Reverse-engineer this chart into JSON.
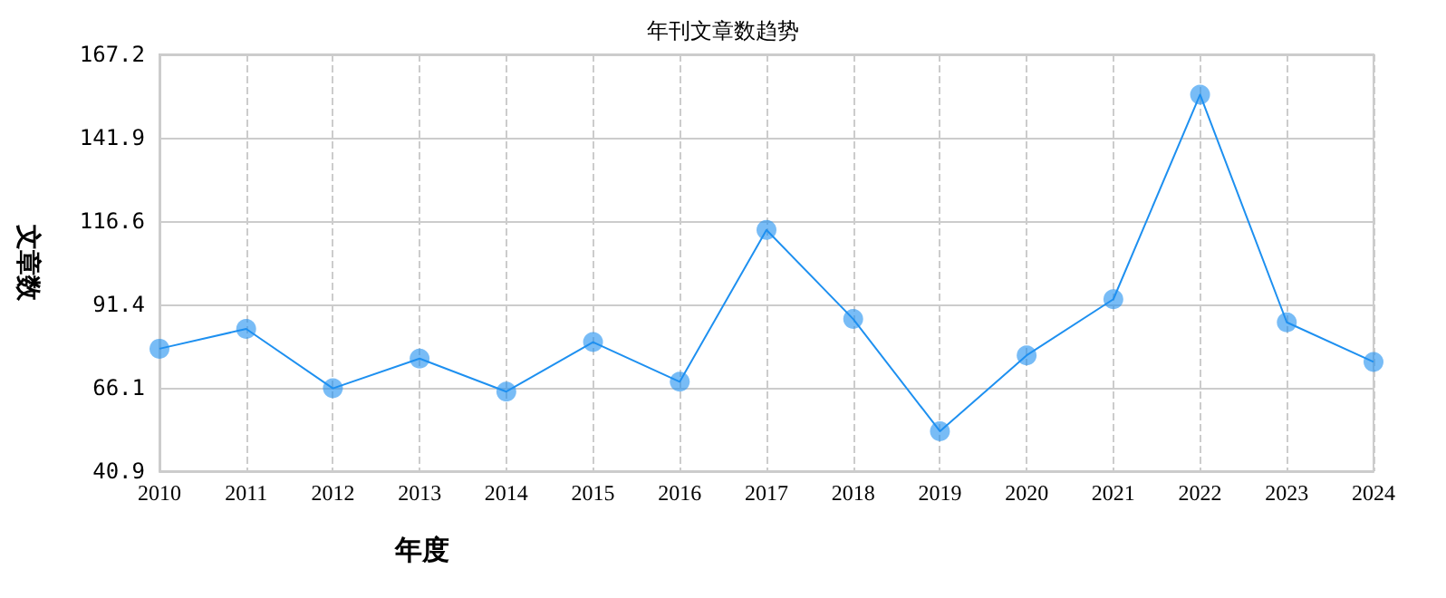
{
  "chart_data": {
    "type": "line",
    "title": "年刊文章数趋势",
    "xlabel": "年度",
    "ylabel": "文章数",
    "categories": [
      "2010",
      "2011",
      "2012",
      "2013",
      "2014",
      "2015",
      "2016",
      "2017",
      "2018",
      "2019",
      "2020",
      "2021",
      "2022",
      "2023",
      "2024"
    ],
    "series": [
      {
        "color": "#1e90f0",
        "values": [
          78,
          84,
          66,
          75,
          65,
          80,
          68,
          114,
          87,
          53,
          76,
          93,
          155,
          86,
          74
        ]
      }
    ],
    "ylim": [
      40.9,
      167.2
    ],
    "yticks": [
      40.9,
      66.1,
      91.4,
      116.6,
      141.9,
      167.2
    ],
    "grid": true,
    "marker": "circle",
    "line_style": "solid",
    "legend": false
  }
}
